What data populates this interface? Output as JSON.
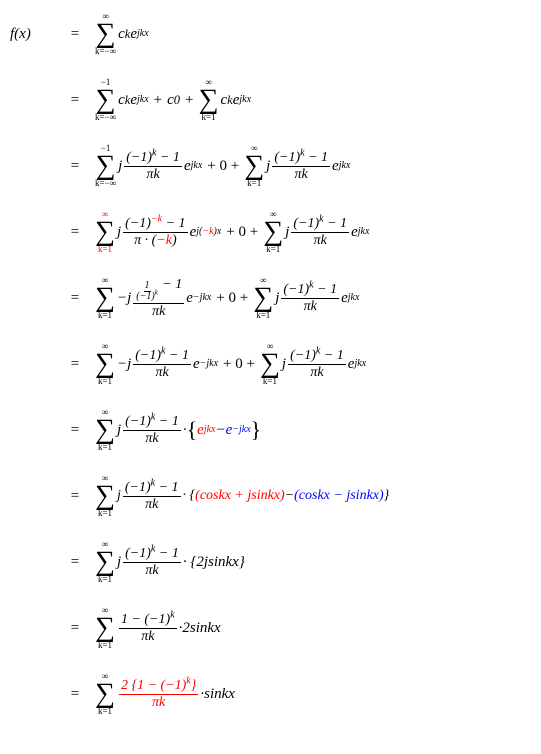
{
  "colors": {
    "red": "#ff0000",
    "blue": "#0000ff",
    "black": "#000000",
    "background": "#ffffff"
  },
  "typography": {
    "base_fontsize": 15,
    "font_family": "Times New Roman",
    "font_style": "italic"
  },
  "lhs": "f(x)",
  "equals": "=",
  "rows": [
    {
      "id": 1,
      "sum_top": "∞",
      "sum_bot": "k=−∞",
      "body": "c",
      "sub": "k",
      "exp": "jkx"
    },
    {
      "id": 2,
      "parts": [
        {
          "sum_top": "−1",
          "sum_bot": "k=−∞",
          "body": "c",
          "sub": "k",
          "exp": "jkx"
        },
        {
          "plus": "+",
          "plain": "c",
          "sub": "0"
        },
        {
          "plus": "+",
          "sum_top": "∞",
          "sum_bot": "k=1",
          "body": "c",
          "sub": "k",
          "exp": "jkx"
        }
      ]
    },
    {
      "id": 3,
      "parts": [
        {
          "sum_top": "−1",
          "sum_bot": "k=−∞",
          "pre": "j",
          "frac_num_l": "(−1)",
          "frac_num_sup": "k",
          "frac_num_r": " − 1",
          "frac_den": "πk",
          "exp": "jkx"
        },
        {
          "plus": " + 0 + "
        },
        {
          "sum_top": "∞",
          "sum_bot": "k=1",
          "pre": "j",
          "frac_num_l": "(−1)",
          "frac_num_sup": "k",
          "frac_num_r": " − 1",
          "frac_den": "πk",
          "exp": "jkx"
        }
      ]
    },
    {
      "id": 4,
      "parts": [
        {
          "sum_top": "∞",
          "sum_top_color": "red",
          "sum_bot": "k=1",
          "sum_bot_color": "red",
          "pre": "j",
          "frac_num_l": "(−1)",
          "frac_num_sup": "−k",
          "frac_num_sup_color": "red",
          "frac_num_r": " − 1",
          "frac_den_l": "π · (",
          "frac_den_mid": "−k",
          "frac_den_mid_color": "red",
          "frac_den_r": ")",
          "exp_l": "j(",
          "exp_mid": "−k",
          "exp_mid_color": "red",
          "exp_r": ")x"
        },
        {
          "plus": " + 0 + "
        },
        {
          "sum_top": "∞",
          "sum_bot": "k=1",
          "pre": "j",
          "frac_num_l": "(−1)",
          "frac_num_sup": "k",
          "frac_num_r": " − 1",
          "frac_den": "πk",
          "exp": "jkx"
        }
      ]
    },
    {
      "id": 5,
      "parts": [
        {
          "sum_top": "∞",
          "sum_bot": "k=1",
          "pre": "−j",
          "nested_frac": true,
          "nested_num": "1",
          "nested_den_l": "(−1)",
          "nested_den_sup": "k",
          "frac_num_r": " − 1",
          "frac_den": "πk",
          "exp": "−jkx"
        },
        {
          "plus": " + 0 + "
        },
        {
          "sum_top": "∞",
          "sum_bot": "k=1",
          "pre": "j",
          "frac_num_l": "(−1)",
          "frac_num_sup": "k",
          "frac_num_r": " − 1",
          "frac_den": "πk",
          "exp": "jkx"
        }
      ]
    },
    {
      "id": 6,
      "parts": [
        {
          "sum_top": "∞",
          "sum_bot": "k=1",
          "pre": "−j",
          "frac_num_l": "(−1)",
          "frac_num_sup": "k",
          "frac_num_r": " − 1",
          "frac_den": "πk",
          "exp": "−jkx"
        },
        {
          "plus": " + 0 + "
        },
        {
          "sum_top": "∞",
          "sum_bot": "k=1",
          "pre": "j",
          "frac_num_l": "(−1)",
          "frac_num_sup": "k",
          "frac_num_r": " − 1",
          "frac_den": "πk",
          "exp": "jkx"
        }
      ]
    },
    {
      "id": 7,
      "sum_top": "∞",
      "sum_bot": "k=1",
      "pre": "j",
      "frac_num_l": "(−1)",
      "frac_num_sup": "k",
      "frac_num_r": " − 1",
      "frac_den": "πk",
      "dot": " · ",
      "brace": true,
      "term1": "e",
      "term1_exp": "jkx",
      "term1_color": "red",
      "minus": " − ",
      "term2": "e",
      "term2_exp": "−jkx",
      "term2_color": "blue"
    },
    {
      "id": 8,
      "sum_top": "∞",
      "sum_bot": "k=1",
      "pre": "j",
      "frac_num_l": "(−1)",
      "frac_num_sup": "k",
      "frac_num_r": " − 1",
      "frac_den": "πk",
      "dot": " · {",
      "term1": "(coskx + jsinkx)",
      "term1_color": "red",
      "minus": " − ",
      "term2": "(coskx − jsinkx)",
      "term2_color": "blue",
      "close": "}"
    },
    {
      "id": 9,
      "sum_top": "∞",
      "sum_bot": "k=1",
      "pre": "j",
      "frac_num_l": "(−1)",
      "frac_num_sup": "k",
      "frac_num_r": " − 1",
      "frac_den": "πk",
      "dot": " · {",
      "body": "2jsinkx",
      "close": "}"
    },
    {
      "id": 10,
      "sum_top": "∞",
      "sum_bot": "k=1",
      "frac_num_l": "1 − (−1)",
      "frac_num_sup": "k",
      "frac_den": "πk",
      "dot": " · ",
      "body": "2sinkx"
    },
    {
      "id": 11,
      "sum_top": "∞",
      "sum_bot": "k=1",
      "frac_color": "red",
      "frac_num_plain_l": "2 {1 − (−1)",
      "frac_num_sup": "k",
      "frac_num_plain_r": "}",
      "frac_den": "πk",
      "dot": " · ",
      "body": "sinkx"
    }
  ]
}
